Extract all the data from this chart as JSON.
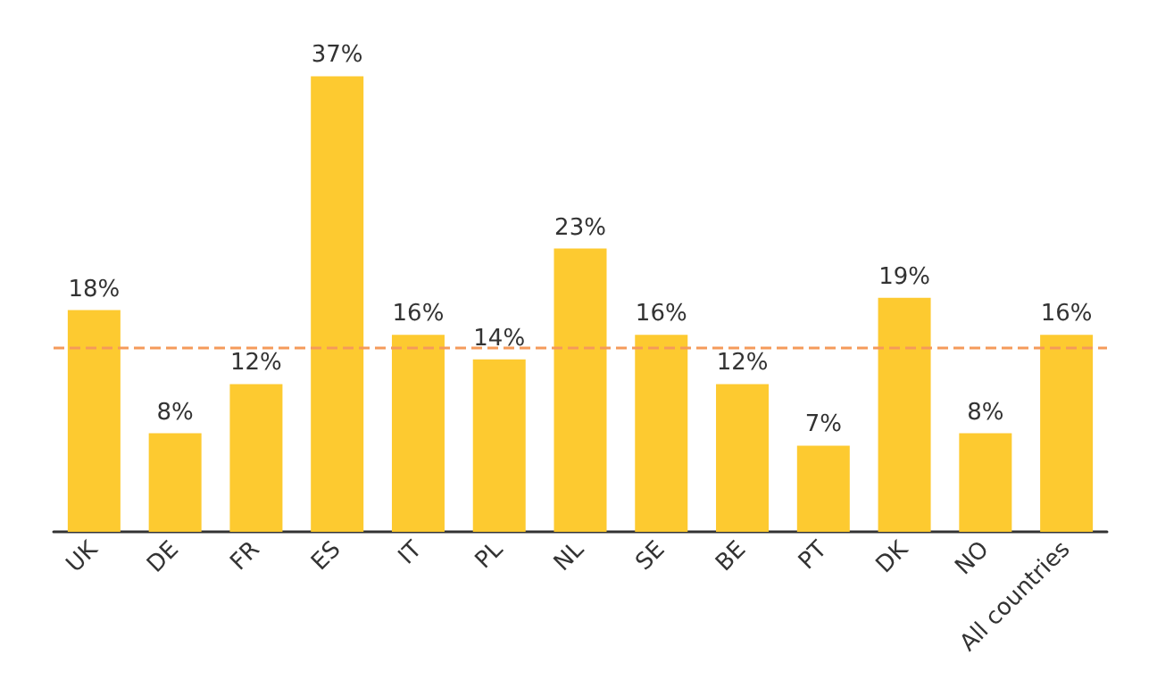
{
  "chart_data": {
    "type": "bar",
    "categories": [
      "UK",
      "DE",
      "FR",
      "ES",
      "IT",
      "PL",
      "NL",
      "SE",
      "BE",
      "PT",
      "DK",
      "NO",
      "All countries"
    ],
    "values": [
      18,
      8,
      12,
      37,
      16,
      14,
      23,
      16,
      12,
      7,
      19,
      8,
      16
    ],
    "value_labels": [
      "18%",
      "8%",
      "12%",
      "37%",
      "16%",
      "14%",
      "23%",
      "16%",
      "12%",
      "7%",
      "19%",
      "8%",
      "16%"
    ],
    "color": "#fdca30",
    "ref_lines": [
      {
        "axis": "y",
        "value": 15,
        "color": "#f59a5a",
        "line_style": "dashed"
      }
    ],
    "grid": false
  }
}
